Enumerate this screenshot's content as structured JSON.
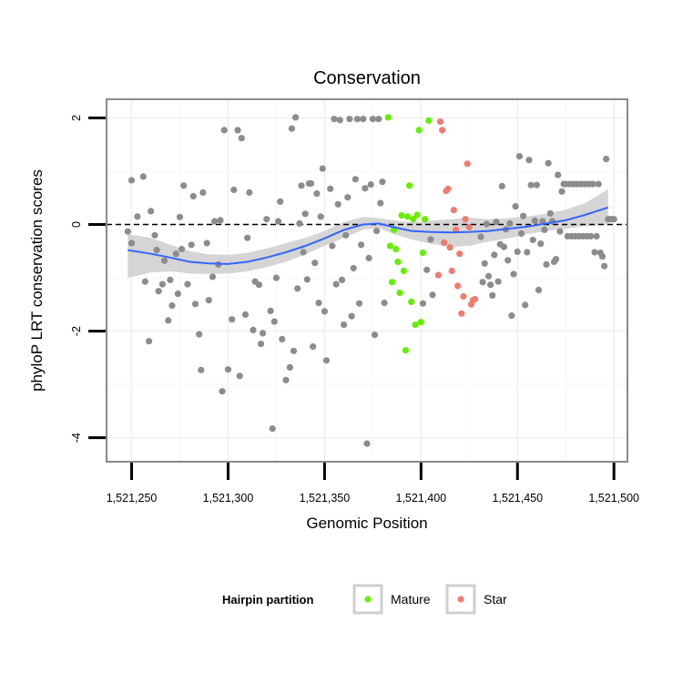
{
  "chart_data": {
    "type": "scatter",
    "title": "Conservation",
    "xlabel": "Genomic Position",
    "ylabel": "phyloP LRT conservation scores",
    "xlim": [
      1521237,
      1521507
    ],
    "ylim": [
      -4.45,
      2.35
    ],
    "x_ticks": [
      1521250,
      1521300,
      1521350,
      1521400,
      1521450,
      1521500
    ],
    "x_tick_labels": [
      "1,521,250",
      "1,521,300",
      "1,521,350",
      "1,521,400",
      "1,521,450",
      "1,521,500"
    ],
    "y_ticks": [
      2,
      0,
      -2,
      -4
    ],
    "y_tick_labels": [
      "2",
      "0",
      "-2",
      "-4"
    ],
    "grid": true,
    "reference_line": {
      "y": 0,
      "style": "dashed",
      "color": "#000000"
    },
    "legend": {
      "title": "Hairpin partition",
      "position": "bottom",
      "entries": [
        {
          "label": "Mature",
          "color": "#66ee00"
        },
        {
          "label": "Star",
          "color": "#f07c70"
        }
      ]
    },
    "colors": {
      "other": "#8c8c8c",
      "mature": "#66ee00",
      "star": "#f07c70",
      "smooth": "#3366ff",
      "ribbon": "#d0d0d0",
      "panel_border": "#8a8a8a"
    },
    "series": [
      {
        "name": "",
        "color": "#8c8c8c",
        "points": [
          [
            1521248,
            -0.13
          ],
          [
            1521250,
            -0.35
          ],
          [
            1521250,
            0.83
          ],
          [
            1521253,
            0.15
          ],
          [
            1521256,
            0.9
          ],
          [
            1521257,
            -1.07
          ],
          [
            1521259,
            -2.19
          ],
          [
            1521260,
            0.25
          ],
          [
            1521262,
            -0.2
          ],
          [
            1521263,
            -0.48
          ],
          [
            1521264,
            -1.25
          ],
          [
            1521266,
            -1.12
          ],
          [
            1521267,
            -0.68
          ],
          [
            1521269,
            -1.8
          ],
          [
            1521270,
            -1.04
          ],
          [
            1521271,
            -1.52
          ],
          [
            1521273,
            -0.55
          ],
          [
            1521274,
            -1.3
          ],
          [
            1521275,
            0.14
          ],
          [
            1521276,
            -0.46
          ],
          [
            1521277,
            0.73
          ],
          [
            1521279,
            -1.12
          ],
          [
            1521281,
            -0.38
          ],
          [
            1521282,
            0.53
          ],
          [
            1521283,
            -1.49
          ],
          [
            1521285,
            -2.06
          ],
          [
            1521286,
            -2.73
          ],
          [
            1521287,
            0.6
          ],
          [
            1521289,
            -0.35
          ],
          [
            1521290,
            -1.42
          ],
          [
            1521292,
            -0.98
          ],
          [
            1521293,
            0.06
          ],
          [
            1521295,
            -0.75
          ],
          [
            1521296,
            0.08
          ],
          [
            1521297,
            -3.13
          ],
          [
            1521298,
            1.77
          ],
          [
            1521300,
            -2.72
          ],
          [
            1521302,
            -1.78
          ],
          [
            1521303,
            0.65
          ],
          [
            1521305,
            1.77
          ],
          [
            1521306,
            -2.84
          ],
          [
            1521307,
            1.62
          ],
          [
            1521309,
            -1.69
          ],
          [
            1521310,
            -0.25
          ],
          [
            1521311,
            0.6
          ],
          [
            1521313,
            -1.98
          ],
          [
            1521314,
            -1.07
          ],
          [
            1521316,
            -1.13
          ],
          [
            1521317,
            -2.24
          ],
          [
            1521318,
            -2.04
          ],
          [
            1521320,
            0.1
          ],
          [
            1521322,
            -1.62
          ],
          [
            1521323,
            -3.83
          ],
          [
            1521324,
            -1.82
          ],
          [
            1521325,
            -1.0
          ],
          [
            1521326,
            0.06
          ],
          [
            1521327,
            0.43
          ],
          [
            1521328,
            -2.15
          ],
          [
            1521330,
            -2.92
          ],
          [
            1521332,
            -2.68
          ],
          [
            1521333,
            1.8
          ],
          [
            1521334,
            -2.37
          ],
          [
            1521335,
            2.01
          ],
          [
            1521336,
            -1.2
          ],
          [
            1521337,
            0.02
          ],
          [
            1521338,
            0.73
          ],
          [
            1521339,
            -0.52
          ],
          [
            1521340,
            0.2
          ],
          [
            1521341,
            -1.03
          ],
          [
            1521342,
            0.77
          ],
          [
            1521343,
            0.77
          ],
          [
            1521344,
            -2.29
          ],
          [
            1521345,
            -0.72
          ],
          [
            1521346,
            0.58
          ],
          [
            1521347,
            -1.47
          ],
          [
            1521348,
            0.15
          ],
          [
            1521349,
            1.05
          ],
          [
            1521350,
            -1.63
          ],
          [
            1521351,
            -2.55
          ],
          [
            1521353,
            0.67
          ],
          [
            1521354,
            -0.4
          ],
          [
            1521355,
            1.98
          ],
          [
            1521356,
            -1.12
          ],
          [
            1521357,
            0.38
          ],
          [
            1521358,
            1.96
          ],
          [
            1521359,
            -1.04
          ],
          [
            1521360,
            -1.88
          ],
          [
            1521361,
            -0.2
          ],
          [
            1521362,
            0.51
          ],
          [
            1521363,
            1.98
          ],
          [
            1521364,
            -1.72
          ],
          [
            1521365,
            -0.82
          ],
          [
            1521366,
            0.85
          ],
          [
            1521367,
            1.98
          ],
          [
            1521368,
            -1.48
          ],
          [
            1521369,
            -0.38
          ],
          [
            1521370,
            1.98
          ],
          [
            1521371,
            0.68
          ],
          [
            1521372,
            -4.11
          ],
          [
            1521373,
            -0.63
          ],
          [
            1521374,
            0.75
          ],
          [
            1521375,
            1.98
          ],
          [
            1521376,
            -2.07
          ],
          [
            1521377,
            -0.12
          ],
          [
            1521378,
            1.98
          ],
          [
            1521379,
            0.4
          ],
          [
            1521380,
            0.8
          ],
          [
            1521381,
            -1.47
          ],
          [
            1521401,
            -1.48
          ],
          [
            1521403,
            -0.85
          ],
          [
            1521405,
            -0.28
          ],
          [
            1521406,
            -1.32
          ],
          [
            1521431,
            -0.23
          ],
          [
            1521432,
            -1.08
          ],
          [
            1521433,
            -0.73
          ],
          [
            1521434,
            0.01
          ],
          [
            1521435,
            -0.97
          ],
          [
            1521436,
            -1.13
          ],
          [
            1521437,
            -1.33
          ],
          [
            1521438,
            -0.57
          ],
          [
            1521439,
            0.05
          ],
          [
            1521440,
            -1.07
          ],
          [
            1521441,
            -0.37
          ],
          [
            1521442,
            0.72
          ],
          [
            1521443,
            -0.42
          ],
          [
            1521444,
            -0.09
          ],
          [
            1521445,
            -0.67
          ],
          [
            1521446,
            0.02
          ],
          [
            1521447,
            -1.71
          ],
          [
            1521448,
            -0.93
          ],
          [
            1521449,
            0.34
          ],
          [
            1521450,
            -0.51
          ],
          [
            1521451,
            1.28
          ],
          [
            1521452,
            -0.17
          ],
          [
            1521453,
            0.16
          ],
          [
            1521454,
            -1.51
          ],
          [
            1521455,
            -0.52
          ],
          [
            1521456,
            1.21
          ],
          [
            1521457,
            0.74
          ],
          [
            1521458,
            -0.29
          ],
          [
            1521459,
            0.07
          ],
          [
            1521460,
            0.74
          ],
          [
            1521461,
            -1.23
          ],
          [
            1521462,
            -0.36
          ],
          [
            1521463,
            0.06
          ],
          [
            1521464,
            -0.1
          ],
          [
            1521465,
            -0.75
          ],
          [
            1521466,
            1.15
          ],
          [
            1521467,
            0.21
          ],
          [
            1521468,
            0.06
          ],
          [
            1521469,
            -0.7
          ],
          [
            1521470,
            -0.65
          ],
          [
            1521471,
            0.93
          ],
          [
            1521472,
            -0.13
          ],
          [
            1521473,
            0.62
          ],
          [
            1521474,
            0.76
          ],
          [
            1521475,
            0.76
          ],
          [
            1521476,
            -0.22
          ],
          [
            1521477,
            0.76
          ],
          [
            1521478,
            -0.22
          ],
          [
            1521479,
            0.76
          ],
          [
            1521480,
            -0.22
          ],
          [
            1521481,
            0.76
          ],
          [
            1521482,
            -0.22
          ],
          [
            1521483,
            0.76
          ],
          [
            1521484,
            -0.22
          ],
          [
            1521485,
            0.76
          ],
          [
            1521486,
            -0.22
          ],
          [
            1521487,
            0.76
          ],
          [
            1521488,
            -0.22
          ],
          [
            1521489,
            0.76
          ],
          [
            1521490,
            -0.52
          ],
          [
            1521491,
            -0.22
          ],
          [
            1521492,
            0.76
          ],
          [
            1521493,
            -0.53
          ],
          [
            1521494,
            -0.6
          ],
          [
            1521495,
            -0.78
          ],
          [
            1521496,
            1.23
          ],
          [
            1521497,
            0.1
          ],
          [
            1521498,
            0.1
          ],
          [
            1521499,
            0.1
          ],
          [
            1521500,
            0.1
          ]
        ]
      },
      {
        "name": "Mature",
        "color": "#66ee00",
        "points": [
          [
            1521383,
            2.01
          ],
          [
            1521384,
            -0.4
          ],
          [
            1521385,
            -1.08
          ],
          [
            1521386,
            -0.1
          ],
          [
            1521387,
            -0.46
          ],
          [
            1521388,
            -0.7
          ],
          [
            1521389,
            -1.28
          ],
          [
            1521390,
            0.17
          ],
          [
            1521391,
            -0.87
          ],
          [
            1521392,
            -2.36
          ],
          [
            1521393,
            0.15
          ],
          [
            1521394,
            0.73
          ],
          [
            1521395,
            -1.45
          ],
          [
            1521396,
            0.1
          ],
          [
            1521397,
            -1.88
          ],
          [
            1521398,
            0.18
          ],
          [
            1521399,
            1.77
          ],
          [
            1521400,
            -1.83
          ],
          [
            1521401,
            -0.53
          ],
          [
            1521402,
            0.1
          ],
          [
            1521404,
            1.95
          ]
        ]
      },
      {
        "name": "Star",
        "color": "#f07c70",
        "points": [
          [
            1521409,
            -0.95
          ],
          [
            1521410,
            1.93
          ],
          [
            1521411,
            1.77
          ],
          [
            1521412,
            -0.34
          ],
          [
            1521413,
            0.63
          ],
          [
            1521414,
            0.67
          ],
          [
            1521415,
            -0.43
          ],
          [
            1521416,
            -0.87
          ],
          [
            1521417,
            0.27
          ],
          [
            1521418,
            -0.1
          ],
          [
            1521419,
            -1.15
          ],
          [
            1521420,
            -0.55
          ],
          [
            1521421,
            -1.67
          ],
          [
            1521422,
            -1.35
          ],
          [
            1521423,
            0.1
          ],
          [
            1521424,
            1.14
          ],
          [
            1521425,
            -0.05
          ],
          [
            1521426,
            -1.5
          ],
          [
            1521427,
            -1.42
          ],
          [
            1521428,
            -1.4
          ]
        ]
      }
    ],
    "smooth": {
      "method": "loess",
      "x": [
        1521248,
        1521260,
        1521270,
        1521280,
        1521290,
        1521300,
        1521310,
        1521320,
        1521330,
        1521340,
        1521350,
        1521360,
        1521370,
        1521378,
        1521386,
        1521395,
        1521405,
        1521415,
        1521425,
        1521435,
        1521445,
        1521455,
        1521465,
        1521475,
        1521485,
        1521497
      ],
      "y": [
        -0.48,
        -0.55,
        -0.62,
        -0.7,
        -0.73,
        -0.74,
        -0.7,
        -0.62,
        -0.52,
        -0.4,
        -0.26,
        -0.1,
        0.0,
        0.02,
        -0.05,
        -0.12,
        -0.14,
        -0.15,
        -0.14,
        -0.12,
        -0.08,
        -0.04,
        0.02,
        0.08,
        0.18,
        0.32
      ],
      "lower": [
        -1.0,
        -0.9,
        -0.88,
        -0.92,
        -0.93,
        -0.92,
        -0.88,
        -0.8,
        -0.7,
        -0.56,
        -0.4,
        -0.25,
        -0.1,
        -0.06,
        -0.18,
        -0.28,
        -0.36,
        -0.42,
        -0.4,
        -0.32,
        -0.26,
        -0.18,
        -0.12,
        -0.08,
        -0.03,
        0.0
      ],
      "upper": [
        -0.18,
        -0.25,
        -0.38,
        -0.5,
        -0.56,
        -0.57,
        -0.53,
        -0.45,
        -0.35,
        -0.25,
        -0.12,
        0.05,
        0.14,
        0.12,
        0.08,
        0.04,
        0.07,
        0.1,
        0.13,
        0.1,
        0.12,
        0.15,
        0.2,
        0.28,
        0.4,
        0.66
      ]
    }
  }
}
